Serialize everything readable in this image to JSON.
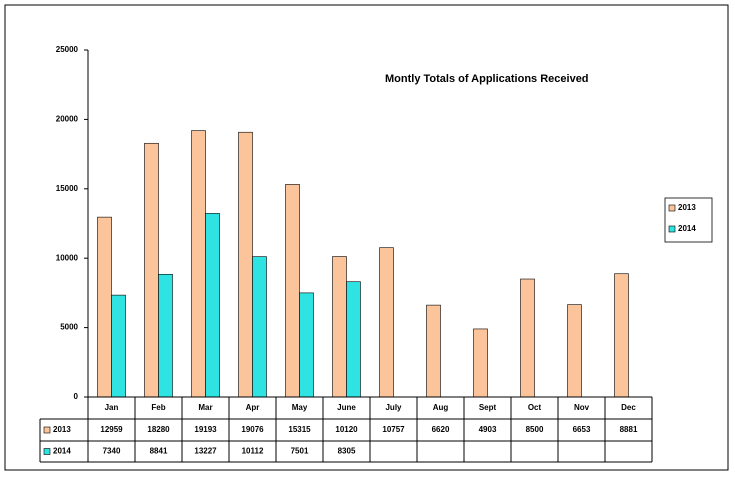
{
  "chart_data": {
    "type": "bar",
    "title": "Montly Totals of Applications Received",
    "categories": [
      "Jan",
      "Feb",
      "Mar",
      "Apr",
      "May",
      "June",
      "July",
      "Aug",
      "Sept",
      "Oct",
      "Nov",
      "Dec"
    ],
    "series": [
      {
        "name": "2013",
        "color": "#fbc49a",
        "values": [
          12959,
          18280,
          19193,
          19076,
          15315,
          10120,
          10757,
          6620,
          4903,
          8500,
          6653,
          8881
        ]
      },
      {
        "name": "2014",
        "color": "#2fe3e3",
        "values": [
          7340,
          8841,
          13227,
          10112,
          7501,
          8305,
          null,
          null,
          null,
          null,
          null,
          null
        ]
      }
    ],
    "ylim": [
      0,
      25000
    ],
    "yticks": [
      0,
      5000,
      10000,
      15000,
      20000,
      25000
    ],
    "grid": false,
    "legend": "right",
    "data_table": true
  }
}
